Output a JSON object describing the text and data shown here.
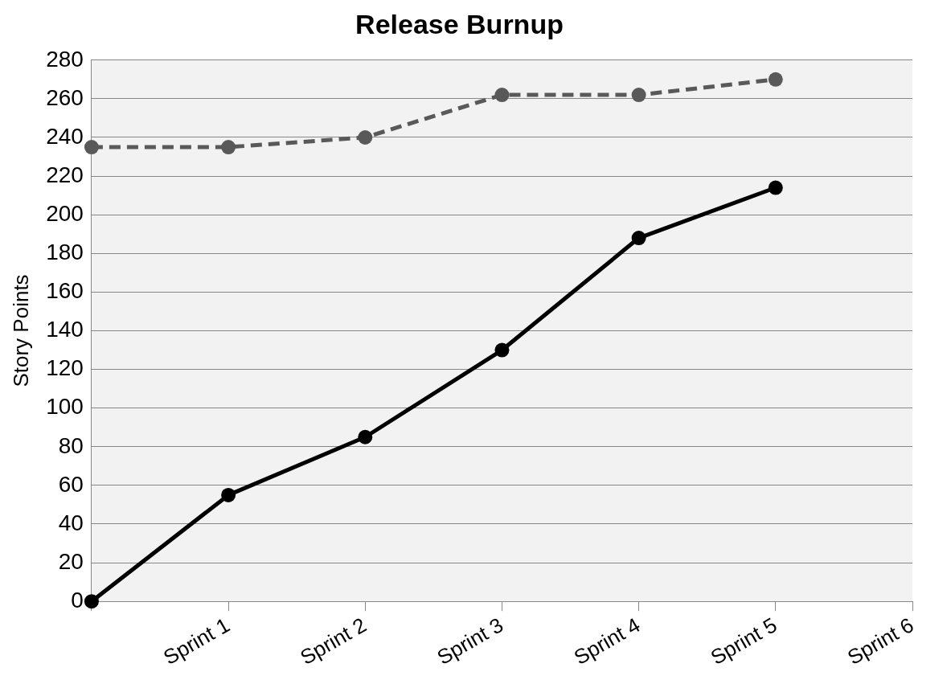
{
  "chart_data": {
    "type": "line",
    "title": "Release Burnup",
    "ylabel": "Story Points",
    "categories": [
      null,
      "Sprint 1",
      "Sprint 2",
      "Sprint 3",
      "Sprint 4",
      "Sprint 5",
      "Sprint 6"
    ],
    "series": [
      {
        "color": "#595959",
        "line_style": "dashed",
        "values": [
          235,
          235,
          240,
          262,
          262,
          270,
          null
        ]
      },
      {
        "color": "#000000",
        "line_style": "solid",
        "values": [
          0,
          55,
          85,
          130,
          188,
          214,
          null
        ]
      }
    ],
    "ylim": [
      0,
      280
    ],
    "yticks": [
      0,
      20,
      40,
      60,
      80,
      100,
      120,
      140,
      160,
      180,
      200,
      220,
      240,
      260,
      280
    ],
    "grid": "y",
    "legend": false,
    "marker": "circle"
  }
}
